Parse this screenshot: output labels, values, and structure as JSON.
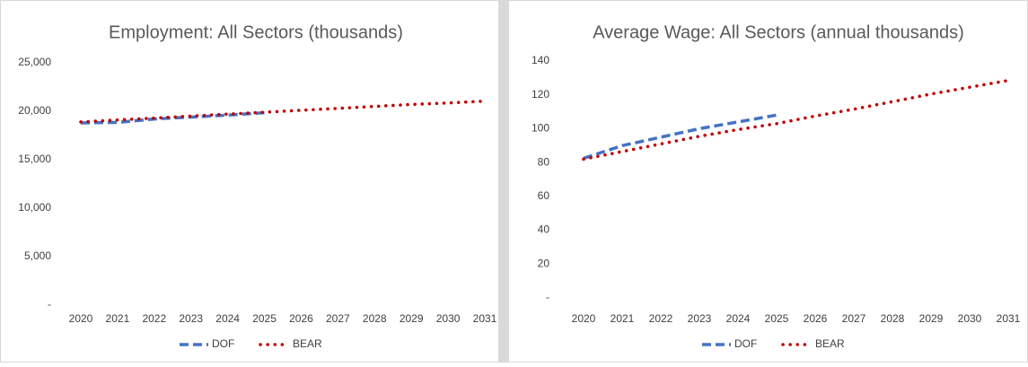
{
  "chart_data": [
    {
      "type": "line",
      "title": "Employment: All Sectors (thousands)",
      "categories": [
        "2020",
        "2021",
        "2022",
        "2023",
        "2024",
        "2025",
        "2026",
        "2027",
        "2028",
        "2029",
        "2030",
        "2031"
      ],
      "series": [
        {
          "name": "DOF",
          "color": "#4472c4",
          "style": "dashed",
          "values": [
            18800,
            18850,
            19200,
            19400,
            19600,
            19850,
            null,
            null,
            null,
            null,
            null,
            null
          ]
        },
        {
          "name": "BEAR",
          "color": "#c00000",
          "style": "dotted",
          "values": [
            18900,
            19100,
            19300,
            19500,
            19700,
            19900,
            20100,
            20300,
            20500,
            20700,
            20850,
            21050
          ]
        }
      ],
      "ylim": [
        0,
        25000
      ],
      "yticks": [
        {
          "value": 0,
          "label": "-"
        },
        {
          "value": 5000,
          "label": "5,000"
        },
        {
          "value": 10000,
          "label": "10,000"
        },
        {
          "value": 15000,
          "label": "15,000"
        },
        {
          "value": 20000,
          "label": "20,000"
        },
        {
          "value": 25000,
          "label": "25,000"
        }
      ],
      "grid": false,
      "legend": "bottom"
    },
    {
      "type": "line",
      "title": "Average Wage: All Sectors (annual thousands)",
      "categories": [
        "2020",
        "2021",
        "2022",
        "2023",
        "2024",
        "2025",
        "2026",
        "2027",
        "2028",
        "2029",
        "2030",
        "2031"
      ],
      "series": [
        {
          "name": "DOF",
          "color": "#4472c4",
          "style": "dashed",
          "values": [
            82.5,
            90,
            95,
            100,
            104,
            108,
            null,
            null,
            null,
            null,
            null,
            null
          ]
        },
        {
          "name": "BEAR",
          "color": "#c00000",
          "style": "dotted",
          "values": [
            82,
            86.5,
            91,
            95.5,
            99.5,
            103,
            107.5,
            111.5,
            116,
            120.5,
            124.5,
            128.5
          ]
        }
      ],
      "ylim": [
        0,
        140
      ],
      "yticks": [
        {
          "value": 0,
          "label": "-"
        },
        20,
        40,
        60,
        80,
        100,
        120,
        140
      ],
      "grid": false,
      "legend": "bottom"
    }
  ]
}
